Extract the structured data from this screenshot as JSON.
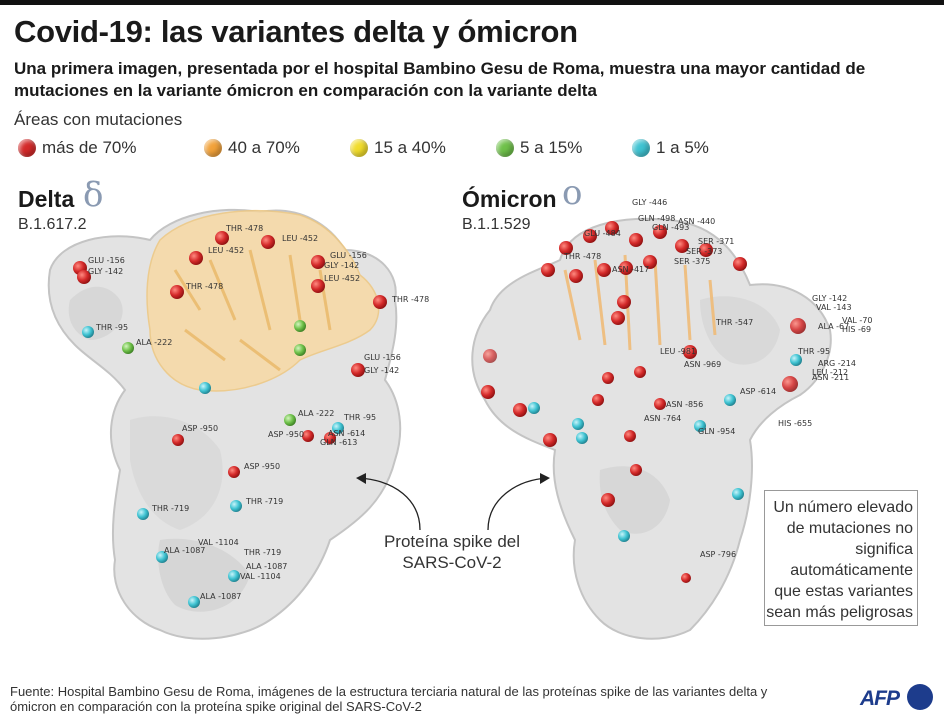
{
  "header": {
    "title": "Covid-19: las variantes delta y ómicron",
    "subtitle": "Una primera imagen, presentada por el hospital Bambino Gesu de Roma, muestra una mayor cantidad de mutaciones en la variante ómicron en comparación con la variante delta"
  },
  "legend": {
    "title": "Áreas con mutaciones",
    "items": [
      {
        "label": "más de 70%",
        "color": "#d42a2a"
      },
      {
        "label": "40 a 70%",
        "color": "#f2a23a"
      },
      {
        "label": "15 a 40%",
        "color": "#f1dc2b"
      },
      {
        "label": "5 a 15%",
        "color": "#6fc14a"
      },
      {
        "label": "1 a 5%",
        "color": "#3fc3d2"
      }
    ]
  },
  "delta": {
    "name": "Delta",
    "symbol": "δ",
    "code": "B.1.617.2",
    "labels": [
      "THR -478",
      "LEU -452",
      "GLU -156",
      "GLY -142",
      "THR -478",
      "LEU -452",
      "GLU -156",
      "GLY -142",
      "LEU -452",
      "THR -478",
      "THR -95",
      "ALA -222",
      "GLU -156",
      "GLY -142",
      "ALA -222",
      "THR -95",
      "ASP -950",
      "ASP -950",
      "ASN -614",
      "GLN -613",
      "ASP -950",
      "THR -719",
      "THR -719",
      "VAL -1104",
      "ALA -1087",
      "THR -719",
      "ALA -1087",
      "VAL -1104",
      "ALA -1087"
    ]
  },
  "omicron": {
    "name": "Ómicron",
    "symbol": "o",
    "code": "B.1.1.529",
    "labels": [
      "GLY -446",
      "GLN -498",
      "ASN -440",
      "GLU -484",
      "GLN -493",
      "SER -371",
      "THR -478",
      "SER -373",
      "SER -375",
      "ASN -417",
      "GLY -142",
      "VAL -143",
      "VAL -70",
      "ALA -67",
      "HIS -69",
      "THR -547",
      "THR -95",
      "LEU -981",
      "ASN -969",
      "ARG -214",
      "LEU -212",
      "ASN -211",
      "ASP -614",
      "ASN -856",
      "ASN -764",
      "GLN -954",
      "HIS -655",
      "ASP -796"
    ]
  },
  "protein_label": "Proteína spike del SARS-CoV-2",
  "note": "Un número elevado de mutaciones no significa automáticamente que estas variantes sean más peligrosas",
  "source": "Fuente: Hospital Bambino Gesu de Roma, imágenes de la estructura terciaria natural de las proteínas spike de las variantes delta y ómicron en comparación con la proteína spike original del SARS-CoV-2",
  "logo": "AFP"
}
